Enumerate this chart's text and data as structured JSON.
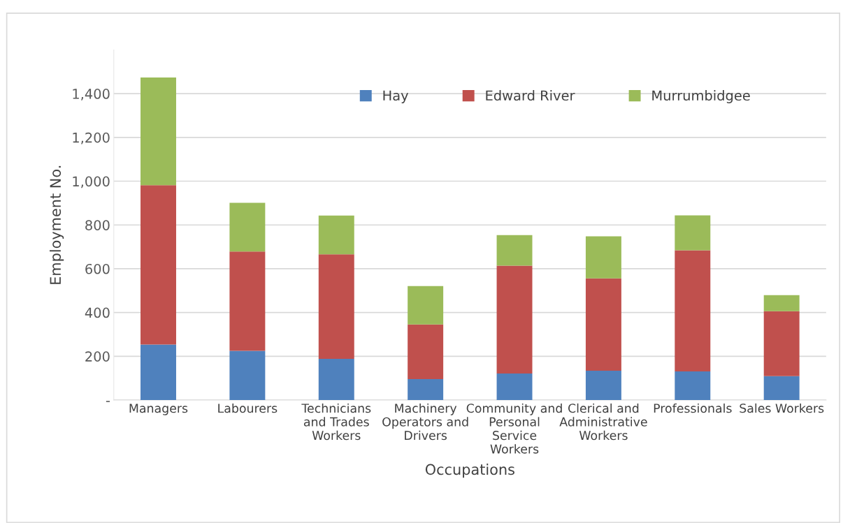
{
  "chart_data": {
    "type": "bar",
    "stacked": true,
    "xlabel": "Occupations",
    "ylabel": "Employment No.",
    "categories": [
      "Managers",
      "Labourers",
      "Technicians and Trades Workers",
      "Machinery Operators and Drivers",
      "Community and Personal Service Workers",
      "Clerical and Administrative Workers",
      "Professionals",
      "Sales Workers"
    ],
    "series": [
      {
        "name": "Hay",
        "color": "#4f81bd",
        "values": [
          254,
          225,
          188,
          96,
          121,
          134,
          131,
          109
        ]
      },
      {
        "name": "Edward River",
        "color": "#c0504d",
        "values": [
          728,
          454,
          478,
          249,
          493,
          422,
          553,
          297
        ]
      },
      {
        "name": "Murrumbidgee",
        "color": "#9bbb59",
        "values": [
          492,
          222,
          177,
          176,
          140,
          192,
          160,
          73
        ]
      }
    ],
    "ylim": [
      0,
      1600
    ],
    "yticks": [
      {
        "value": 0,
        "label": "-"
      },
      200,
      400,
      600,
      800,
      {
        "value": 1000,
        "label": "1,000"
      },
      {
        "value": 1200,
        "label": "1,200"
      },
      {
        "value": 1400,
        "label": "1,400"
      }
    ],
    "grid": "y",
    "legend": "top"
  }
}
